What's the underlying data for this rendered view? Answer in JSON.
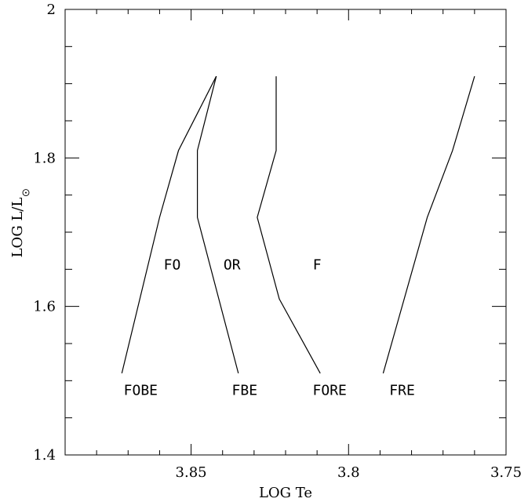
{
  "chart_data": {
    "type": "line",
    "xlabel": "LOG Te",
    "ylabel_text": "LOG L/L",
    "ylabel_subscript": "sun-symbol",
    "xlim": [
      3.89,
      3.75
    ],
    "ylim": [
      1.4,
      2.0
    ],
    "x_ticks": [
      {
        "value": 3.85,
        "label": "3.85"
      },
      {
        "value": 3.8,
        "label": "3.8"
      },
      {
        "value": 3.75,
        "label": "3.75"
      }
    ],
    "y_ticks": [
      {
        "value": 1.4,
        "label": "1.4"
      },
      {
        "value": 1.6,
        "label": "1.6"
      },
      {
        "value": 1.8,
        "label": "1.8"
      },
      {
        "value": 2.0,
        "label": "2"
      }
    ],
    "x_minor_step": 0.01,
    "y_minor_step": 0.05,
    "grid": false,
    "series": [
      {
        "points": [
          [
            3.872,
            1.51
          ],
          [
            3.86,
            1.72
          ],
          [
            3.854,
            1.81
          ],
          [
            3.842,
            1.91
          ]
        ]
      },
      {
        "points": [
          [
            3.835,
            1.51
          ],
          [
            3.848,
            1.72
          ],
          [
            3.848,
            1.81
          ],
          [
            3.842,
            1.91
          ]
        ]
      },
      {
        "points": [
          [
            3.809,
            1.51
          ],
          [
            3.822,
            1.61
          ],
          [
            3.829,
            1.72
          ],
          [
            3.823,
            1.81
          ],
          [
            3.823,
            1.91
          ]
        ]
      },
      {
        "points": [
          [
            3.789,
            1.51
          ],
          [
            3.775,
            1.72
          ],
          [
            3.767,
            1.81
          ],
          [
            3.76,
            1.91
          ]
        ]
      }
    ],
    "annotations": [
      {
        "text": "FO",
        "x": 3.856,
        "y": 1.656
      },
      {
        "text": "OR",
        "x": 3.837,
        "y": 1.656
      },
      {
        "text": "F",
        "x": 3.81,
        "y": 1.656
      },
      {
        "text": "FOBE",
        "x": 3.866,
        "y": 1.487
      },
      {
        "text": "FBE",
        "x": 3.833,
        "y": 1.487
      },
      {
        "text": "FORE",
        "x": 3.806,
        "y": 1.487
      },
      {
        "text": "FRE",
        "x": 3.783,
        "y": 1.487
      }
    ]
  }
}
